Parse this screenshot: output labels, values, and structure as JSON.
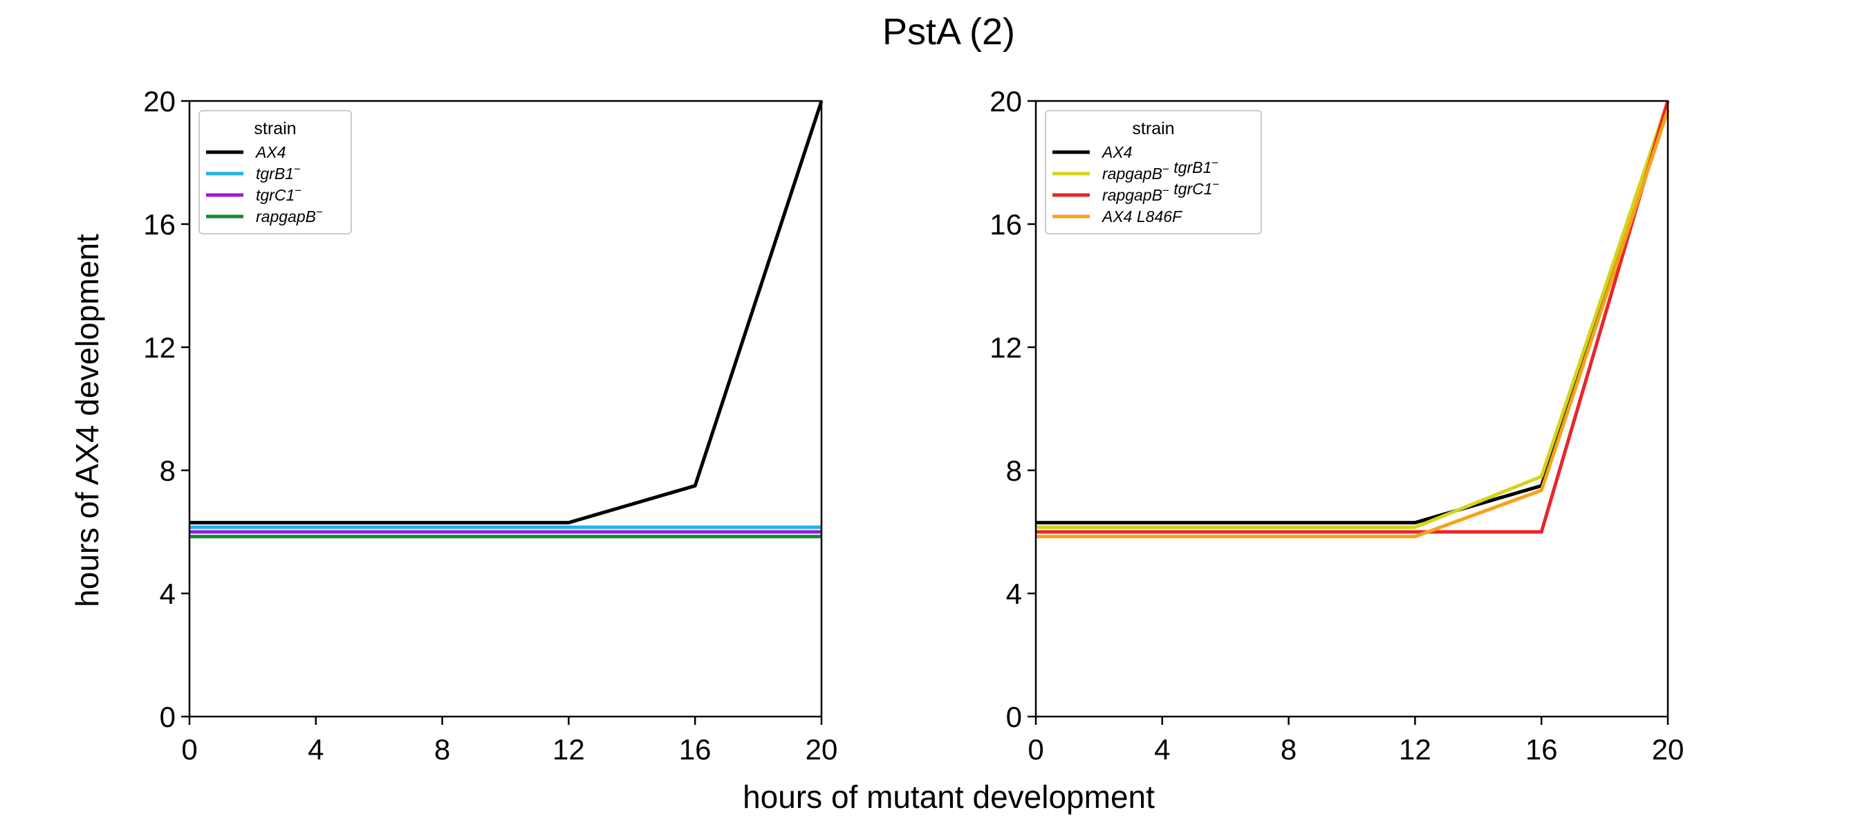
{
  "figure": {
    "title": "PstA (2)",
    "xlabel": "hours of mutant development",
    "ylabel": "hours of AX4 development"
  },
  "chart_data": [
    {
      "type": "line",
      "xlim": [
        0,
        20
      ],
      "ylim": [
        0,
        20
      ],
      "xticks": [
        "0",
        "4",
        "8",
        "12",
        "16",
        "20"
      ],
      "yticks": [
        "0",
        "4",
        "8",
        "12",
        "16",
        "20"
      ],
      "grid": false,
      "legend": {
        "title": "strain",
        "position": "top-left"
      },
      "series": [
        {
          "name": "AX4",
          "label_main": "AX4",
          "label_sup": "",
          "color": "#000000",
          "x": [
            0,
            12,
            16,
            20
          ],
          "y": [
            6.3,
            6.3,
            7.5,
            20
          ]
        },
        {
          "name": "tgrB1−",
          "label_main": "tgrB1",
          "label_sup": "−",
          "color": "#1fb4f0",
          "x": [
            0,
            20
          ],
          "y": [
            6.15,
            6.15
          ]
        },
        {
          "name": "tgrC1−",
          "label_main": "tgrC1",
          "label_sup": "−",
          "color": "#9b19d6",
          "x": [
            0,
            20
          ],
          "y": [
            6.0,
            6.0
          ]
        },
        {
          "name": "rapgapB−",
          "label_main": "rapgapB",
          "label_sup": "−",
          "color": "#118a32",
          "x": [
            0,
            20
          ],
          "y": [
            5.85,
            5.85
          ]
        }
      ]
    },
    {
      "type": "line",
      "xlim": [
        0,
        20
      ],
      "ylim": [
        0,
        20
      ],
      "xticks": [
        "0",
        "4",
        "8",
        "12",
        "16",
        "20"
      ],
      "yticks": [
        "0",
        "4",
        "8",
        "12",
        "16",
        "20"
      ],
      "grid": false,
      "legend": {
        "title": "strain",
        "position": "top-left"
      },
      "series": [
        {
          "name": "AX4",
          "label_main": "AX4",
          "label_sup": "",
          "color": "#000000",
          "x": [
            0,
            12,
            16,
            20
          ],
          "y": [
            6.3,
            6.3,
            7.5,
            20
          ]
        },
        {
          "name": "rapgapB− tgrB1−",
          "label_main": "rapgapB",
          "label_sup": "−",
          "label_main2": " tgrB1",
          "label_sup2": "−",
          "color": "#d4d419",
          "x": [
            0,
            12,
            16,
            20
          ],
          "y": [
            6.15,
            6.15,
            7.8,
            20
          ]
        },
        {
          "name": "rapgapB− tgrC1−",
          "label_main": "rapgapB",
          "label_sup": "−",
          "label_main2": " tgrC1",
          "label_sup2": "−",
          "color": "#e8262a",
          "x": [
            0,
            12,
            16,
            20
          ],
          "y": [
            6.0,
            6.0,
            6.0,
            20
          ]
        },
        {
          "name": "AX4 L846F",
          "label_main": "AX4 L846F",
          "label_sup": "",
          "color": "#f5a21b",
          "x": [
            0,
            12,
            16,
            20
          ],
          "y": [
            5.85,
            5.85,
            7.35,
            19.7
          ]
        }
      ]
    }
  ]
}
